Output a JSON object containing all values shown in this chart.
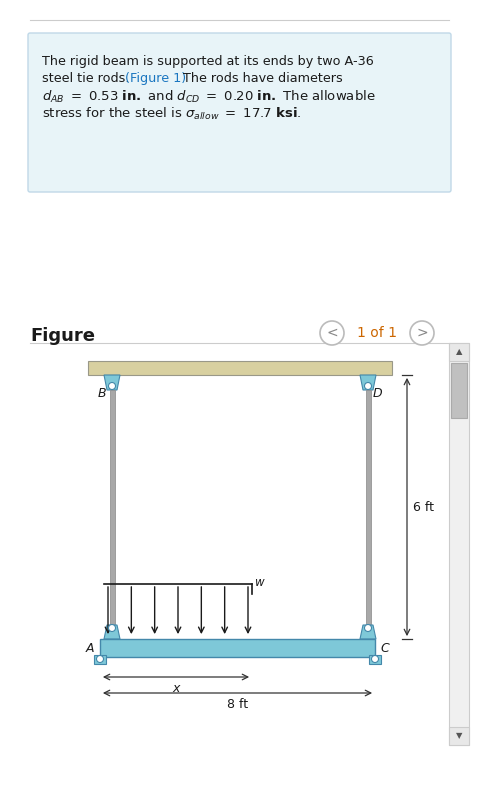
{
  "bg_color": "#ffffff",
  "text_box_bg": "#e8f4f8",
  "text_box_border": "#c0d8e8",
  "figure_label": "Figure",
  "nav_text": "1 of 1",
  "dim_8ft": "8 ft",
  "dim_6ft": "6 ft",
  "label_x": "x",
  "label_w": "w",
  "label_A": "A",
  "label_B": "B",
  "label_C": "C",
  "label_D": "D",
  "rod_color": "#a8a8a8",
  "beam_color_bottom": "#7ec8d8",
  "connector_color": "#7ec8d8",
  "ceiling_color": "#d8d0a0",
  "arrow_color": "#1a1a1a",
  "dim_line_color": "#333333",
  "separator_color": "#cccccc",
  "scrollbar_bg": "#f0f0f0",
  "scrollbar_thumb": "#c0c0c0",
  "link_color": "#1a76c0",
  "text_color": "#1a1a1a",
  "nav_count_color": "#cc6600",
  "nav_btn_color": "#888888"
}
